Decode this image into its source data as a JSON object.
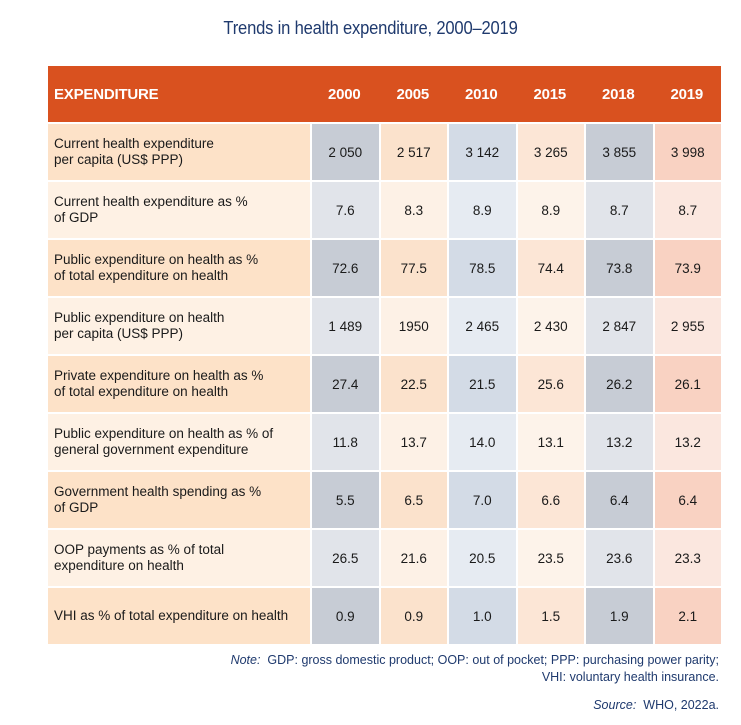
{
  "title": "Trends in health expenditure, 2000–2019",
  "table": {
    "header_label": "EXPENDITURE",
    "years": [
      "2000",
      "2005",
      "2010",
      "2015",
      "2018",
      "2019"
    ],
    "rows": [
      {
        "label_line1": "Current health expenditure",
        "label_line2": "per capita (US$ PPP)",
        "values": [
          "2 050",
          "2 517",
          "3 142",
          "3 265",
          "3 855",
          "3 998"
        ]
      },
      {
        "label_line1": "Current health expenditure as %",
        "label_line2": "of GDP",
        "values": [
          "7.6",
          "8.3",
          "8.9",
          "8.9",
          "8.7",
          "8.7"
        ]
      },
      {
        "label_line1": "Public expenditure on health as %",
        "label_line2": "of total expenditure on health",
        "values": [
          "72.6",
          "77.5",
          "78.5",
          "74.4",
          "73.8",
          "73.9"
        ]
      },
      {
        "label_line1": "Public expenditure on health",
        "label_line2": "per capita (US$ PPP)",
        "values": [
          "1 489",
          "1950",
          "2 465",
          "2 430",
          "2 847",
          "2 955"
        ]
      },
      {
        "label_line1": "Private expenditure on health as %",
        "label_line2": "of total expenditure on health",
        "values": [
          "27.4",
          "22.5",
          "21.5",
          "25.6",
          "26.2",
          "26.1"
        ]
      },
      {
        "label_line1": "Public expenditure on health as % of",
        "label_line2": "general government expenditure",
        "values": [
          "11.8",
          "13.7",
          "14.0",
          "13.1",
          "13.2",
          "13.2"
        ]
      },
      {
        "label_line1": "Government health spending as %",
        "label_line2": "of GDP",
        "values": [
          "5.5",
          "6.5",
          "7.0",
          "6.6",
          "6.4",
          "6.4"
        ]
      },
      {
        "label_line1": "OOP payments as % of total",
        "label_line2": "expenditure on health",
        "values": [
          "26.5",
          "21.6",
          "20.5",
          "23.5",
          "23.6",
          "23.3"
        ]
      },
      {
        "label_line1": "VHI as % of total expenditure on health",
        "label_line2": "",
        "values": [
          "0.9",
          "0.9",
          "1.0",
          "1.5",
          "1.9",
          "2.1"
        ]
      }
    ]
  },
  "note": {
    "label": "Note:",
    "line1": "GDP: gross domestic product; OOP: out of pocket; PPP: purchasing power parity;",
    "line2": "VHI: voluntary health insurance."
  },
  "source": {
    "label": "Source:",
    "text": "WHO, 2022a."
  },
  "colors": {
    "header_bg": "#d9511f",
    "title_text": "#1f3a6e"
  }
}
